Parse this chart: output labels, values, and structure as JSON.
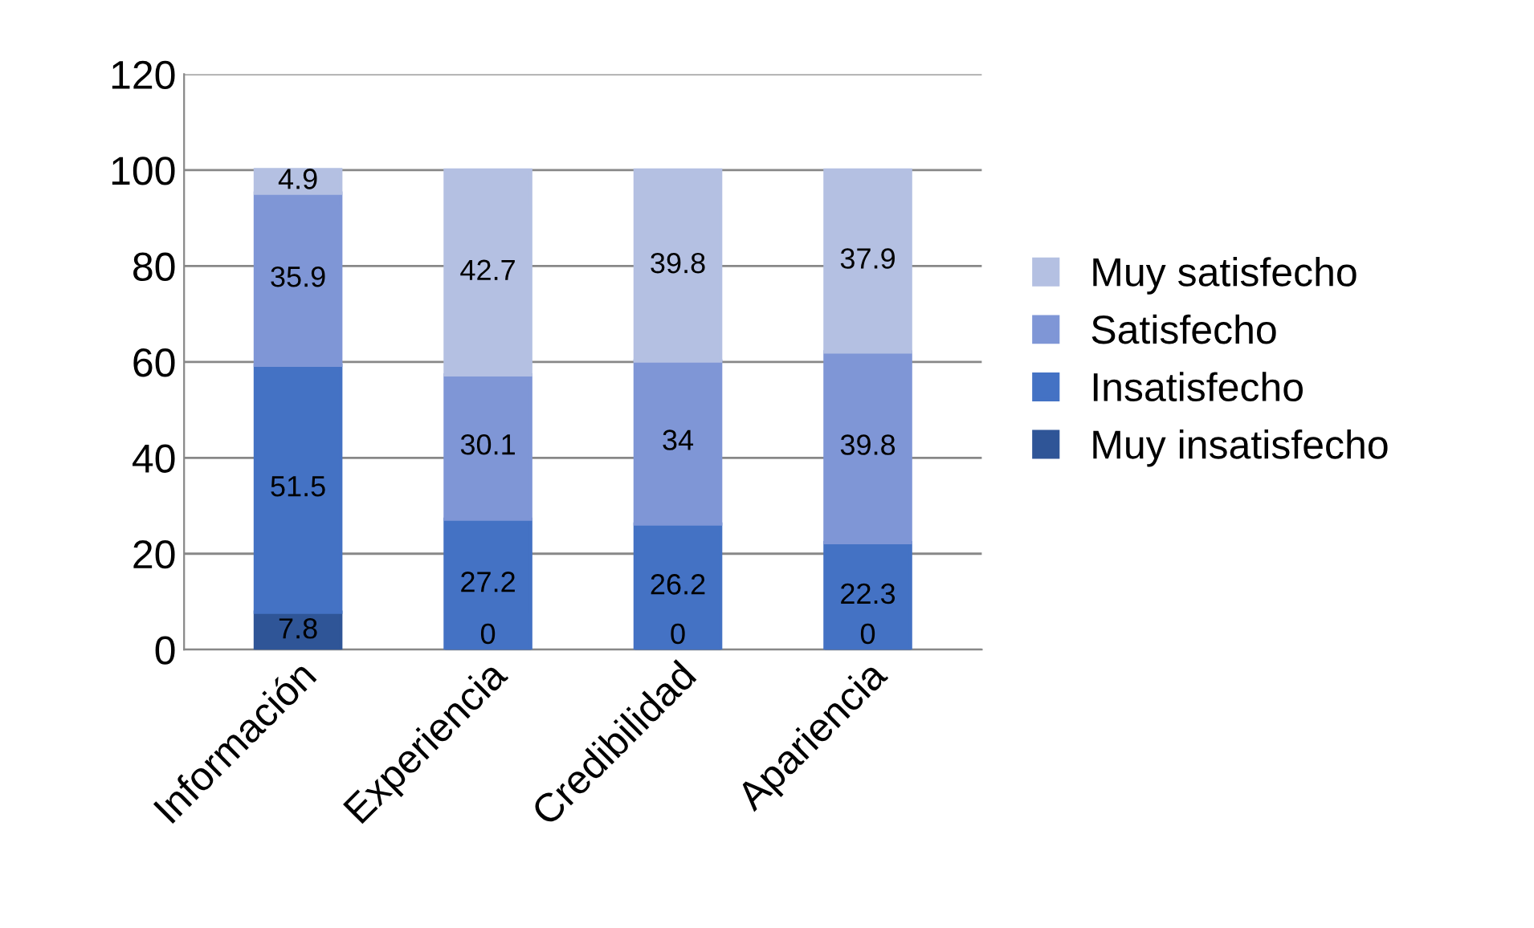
{
  "chart_data": {
    "type": "bar",
    "stacked": true,
    "categories": [
      "Información",
      "Experiencia",
      "Credibilidad",
      "Apariencia"
    ],
    "series": [
      {
        "name": "Muy insatisfecho",
        "color": "#2f5597",
        "values": [
          7.8,
          0,
          0,
          0
        ]
      },
      {
        "name": "Insatisfecho",
        "color": "#4472c4",
        "values": [
          51.5,
          27.2,
          26.2,
          22.3
        ]
      },
      {
        "name": "Satisfecho",
        "color": "#7f96d6",
        "values": [
          35.9,
          30.1,
          34,
          39.8
        ]
      },
      {
        "name": "Muy satisfecho",
        "color": "#b4c0e2",
        "values": [
          4.9,
          42.7,
          39.8,
          37.9
        ]
      }
    ],
    "ylim": [
      0,
      120
    ],
    "yticks": [
      0,
      20,
      40,
      60,
      80,
      100,
      120
    ],
    "grid": "y",
    "legend": "right",
    "data_labels": true
  }
}
